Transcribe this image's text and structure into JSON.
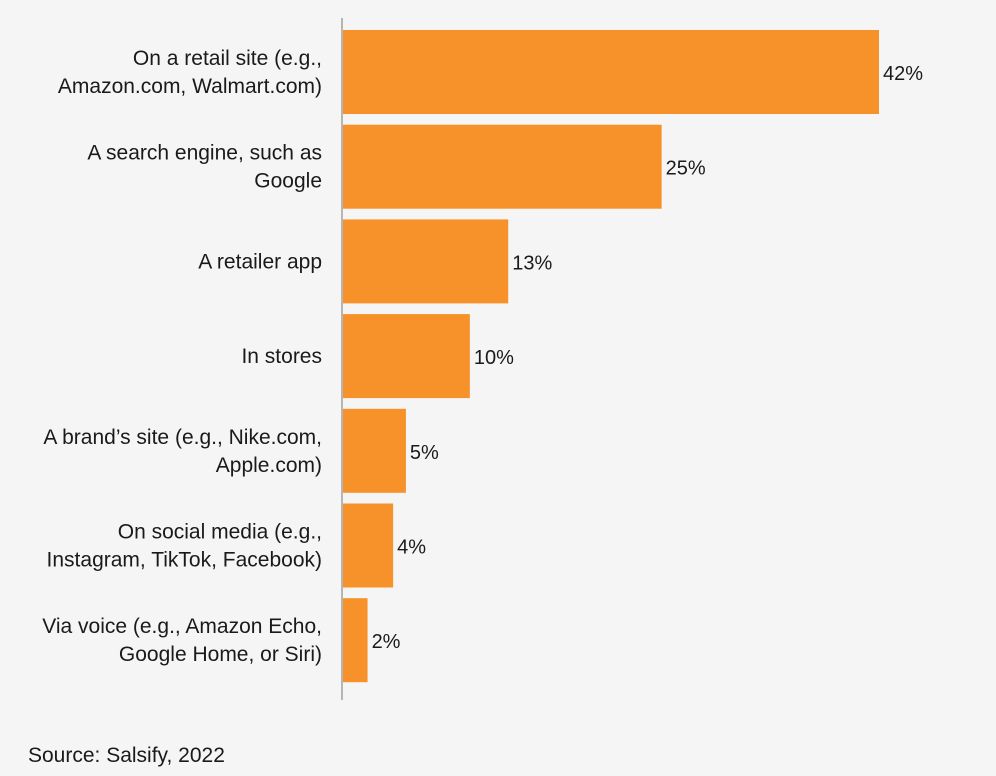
{
  "chart_data": {
    "type": "bar",
    "orientation": "horizontal",
    "categories": [
      [
        "On a retail site (e.g.,",
        "Amazon.com, Walmart.com)"
      ],
      [
        "A search engine, such as",
        "Google"
      ],
      [
        "A retailer app"
      ],
      [
        "In stores"
      ],
      [
        "A brand’s site (e.g., Nike.com,",
        "Apple.com)"
      ],
      [
        "On social media (e.g.,",
        "Instagram, TikTok, Facebook)"
      ],
      [
        "Via voice (e.g., Amazon Echo,",
        "Google Home, or Siri)"
      ]
    ],
    "values": [
      42,
      25,
      13,
      10,
      5,
      4,
      2
    ],
    "value_labels": [
      "42%",
      "25%",
      "13%",
      "10%",
      "5%",
      "4%",
      "2%"
    ],
    "xlim": [
      0,
      42
    ],
    "bar_color": "#f7922b",
    "axis_color": "#b5b5b5",
    "grid": false,
    "legend": "none"
  },
  "source": "Source: Salsify, 2022"
}
